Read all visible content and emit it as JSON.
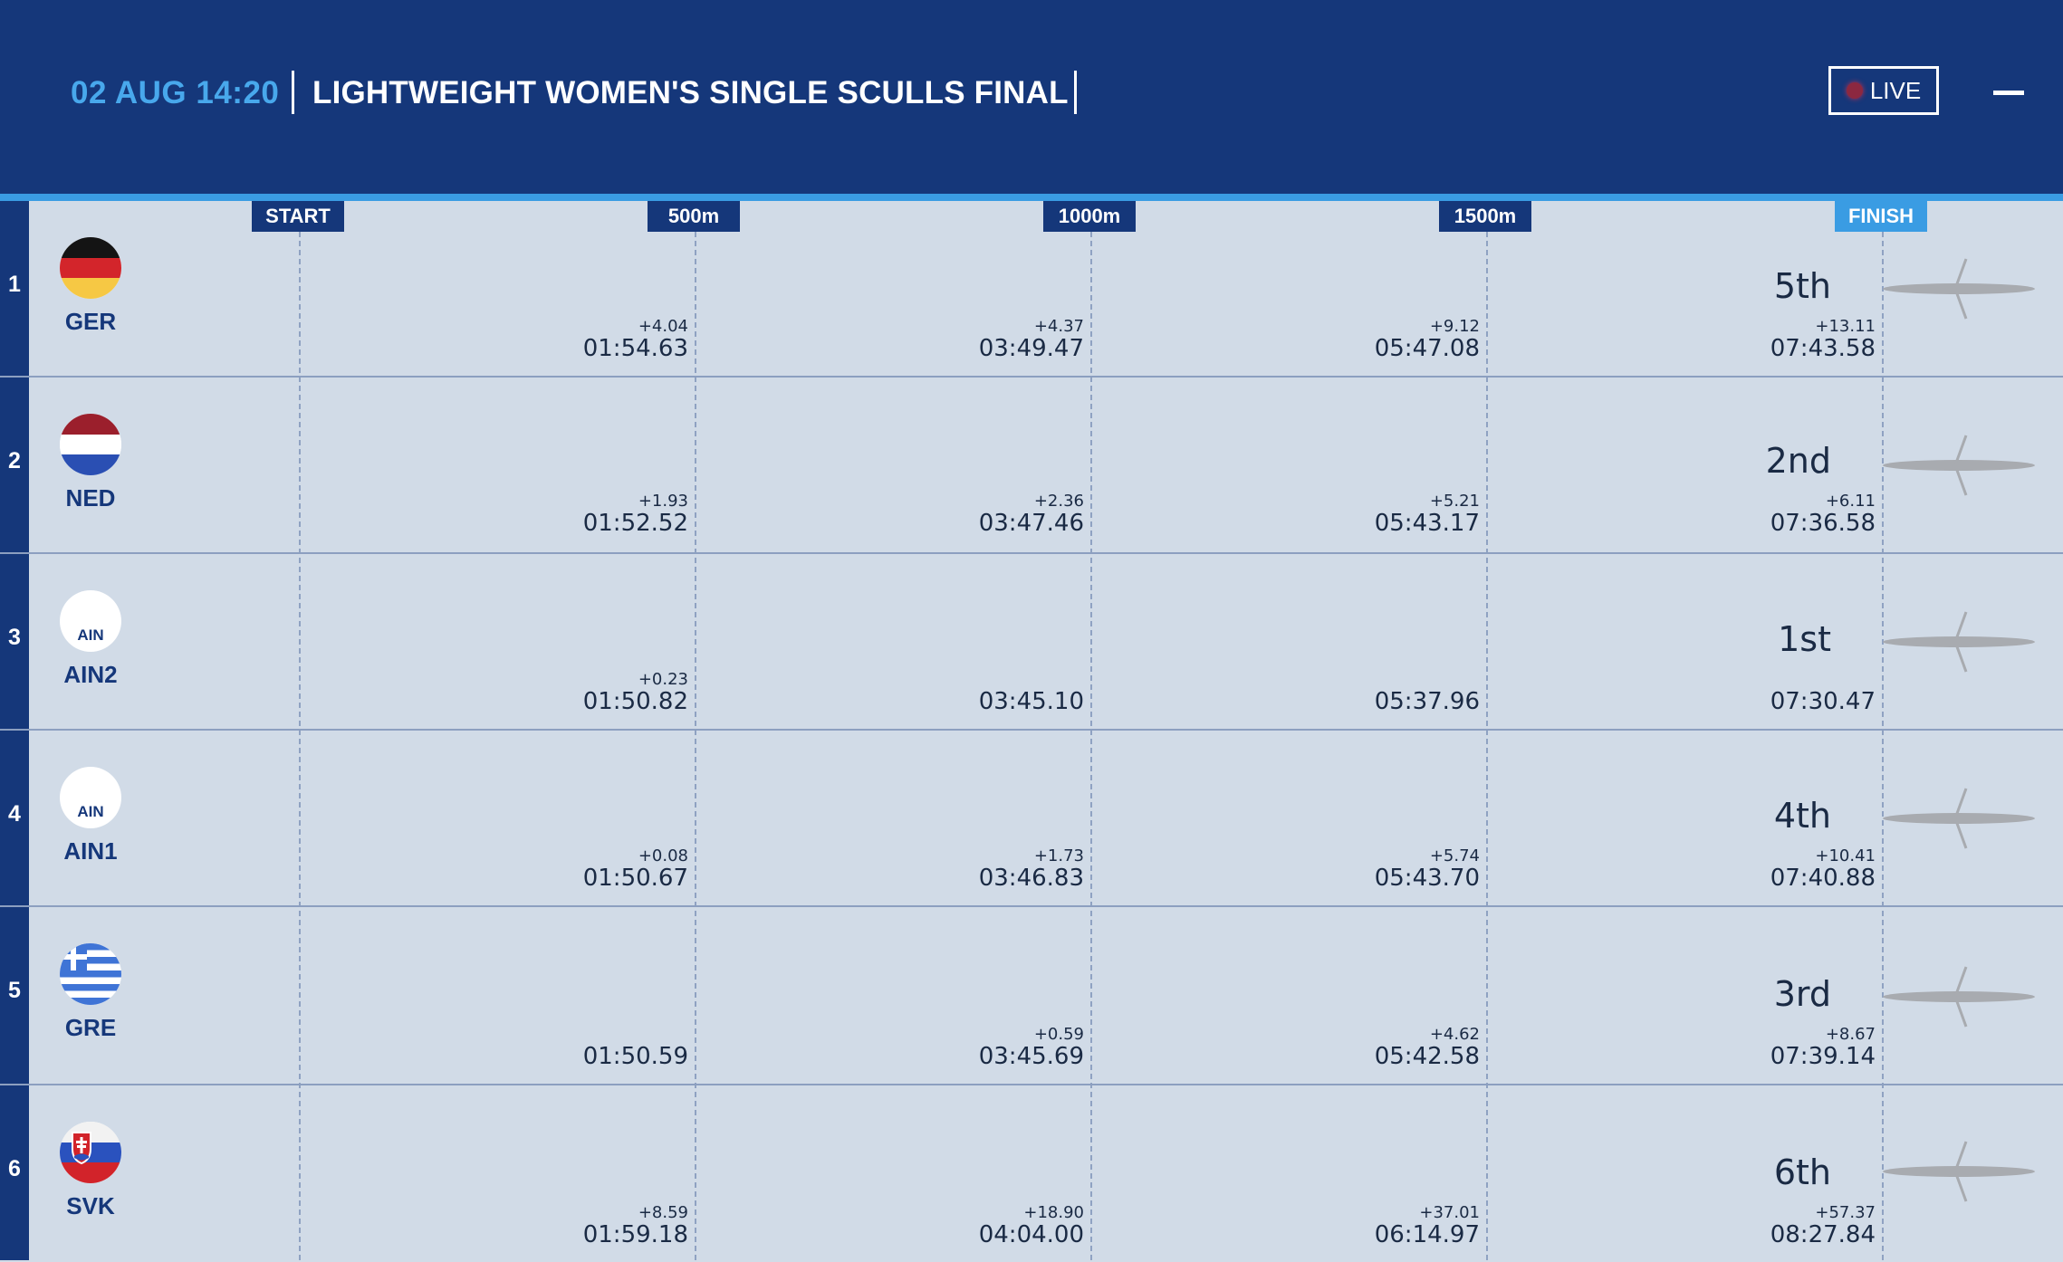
{
  "header": {
    "date": "02 AUG 14:20",
    "title": "LIGHTWEIGHT WOMEN'S SINGLE SCULLS FINAL",
    "live_label": "LIVE"
  },
  "colors": {
    "header_bg": "#15377a",
    "accent": "#3a9ce3",
    "date_text": "#48a8ec",
    "body_bg": "#d1dbe7"
  },
  "markers": [
    "START",
    "500m",
    "1000m",
    "1500m",
    "FINISH"
  ],
  "rows": [
    {
      "lane": "1",
      "code": "GER",
      "flag": "germany-flag-icon",
      "splits": [
        {
          "diff": "+4.04",
          "time": "01:54.63"
        },
        {
          "diff": "+4.37",
          "time": "03:49.47"
        },
        {
          "diff": "+9.12",
          "time": "05:47.08"
        },
        {
          "diff": "+13.11",
          "time": "07:43.58"
        }
      ],
      "place": "5th"
    },
    {
      "lane": "2",
      "code": "NED",
      "flag": "netherlands-flag-icon",
      "splits": [
        {
          "diff": "+1.93",
          "time": "01:52.52"
        },
        {
          "diff": "+2.36",
          "time": "03:47.46"
        },
        {
          "diff": "+5.21",
          "time": "05:43.17"
        },
        {
          "diff": "+6.11",
          "time": "07:36.58"
        }
      ],
      "place": "2nd"
    },
    {
      "lane": "3",
      "code": "AIN2",
      "flag": "ain-flag-icon",
      "flag_text": "AIN",
      "splits": [
        {
          "diff": "+0.23",
          "time": "01:50.82"
        },
        {
          "diff": "",
          "time": "03:45.10"
        },
        {
          "diff": "",
          "time": "05:37.96"
        },
        {
          "diff": "",
          "time": "07:30.47"
        }
      ],
      "place": "1st"
    },
    {
      "lane": "4",
      "code": "AIN1",
      "flag": "ain-flag-icon",
      "flag_text": "AIN",
      "splits": [
        {
          "diff": "+0.08",
          "time": "01:50.67"
        },
        {
          "diff": "+1.73",
          "time": "03:46.83"
        },
        {
          "diff": "+5.74",
          "time": "05:43.70"
        },
        {
          "diff": "+10.41",
          "time": "07:40.88"
        }
      ],
      "place": "4th"
    },
    {
      "lane": "5",
      "code": "GRE",
      "flag": "greece-flag-icon",
      "splits": [
        {
          "diff": "",
          "time": "01:50.59"
        },
        {
          "diff": "+0.59",
          "time": "03:45.69"
        },
        {
          "diff": "+4.62",
          "time": "05:42.58"
        },
        {
          "diff": "+8.67",
          "time": "07:39.14"
        }
      ],
      "place": "3rd"
    },
    {
      "lane": "6",
      "code": "SVK",
      "flag": "slovakia-flag-icon",
      "splits": [
        {
          "diff": "+8.59",
          "time": "01:59.18"
        },
        {
          "diff": "+18.90",
          "time": "04:04.00"
        },
        {
          "diff": "+37.01",
          "time": "06:14.97"
        },
        {
          "diff": "+57.37",
          "time": "08:27.84"
        }
      ],
      "place": "6th"
    }
  ]
}
